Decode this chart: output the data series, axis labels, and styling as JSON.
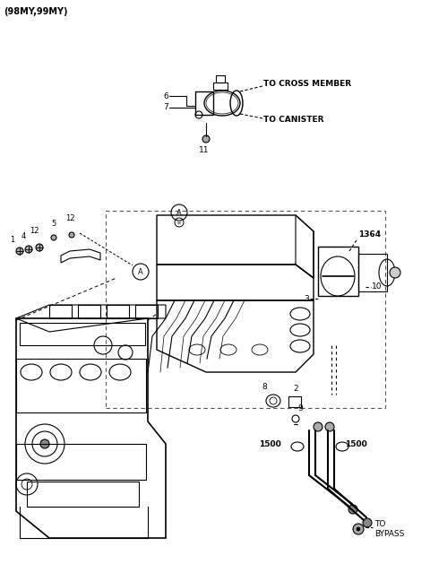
{
  "background_color": "#ffffff",
  "line_color": "#000000",
  "gray_color": "#888888",
  "figsize": [
    4.8,
    6.39
  ],
  "dpi": 100,
  "labels": {
    "top_left": "(98MY,99MY)",
    "to_cross_member": "TO CROSS MEMBER",
    "to_canister": "TO CANISTER",
    "to_bypass": "TO\nBYPASS",
    "6": "6",
    "7": "7",
    "11": "11",
    "12a": "12",
    "5": "5",
    "12b": "12",
    "1": "1",
    "4": "4",
    "A1": "A",
    "A2": "A",
    "1364": "1364",
    "3": "3",
    "10": "10",
    "8": "8",
    "2": "2",
    "9": "9",
    "1500a": "1500",
    "1500b": "1500"
  }
}
